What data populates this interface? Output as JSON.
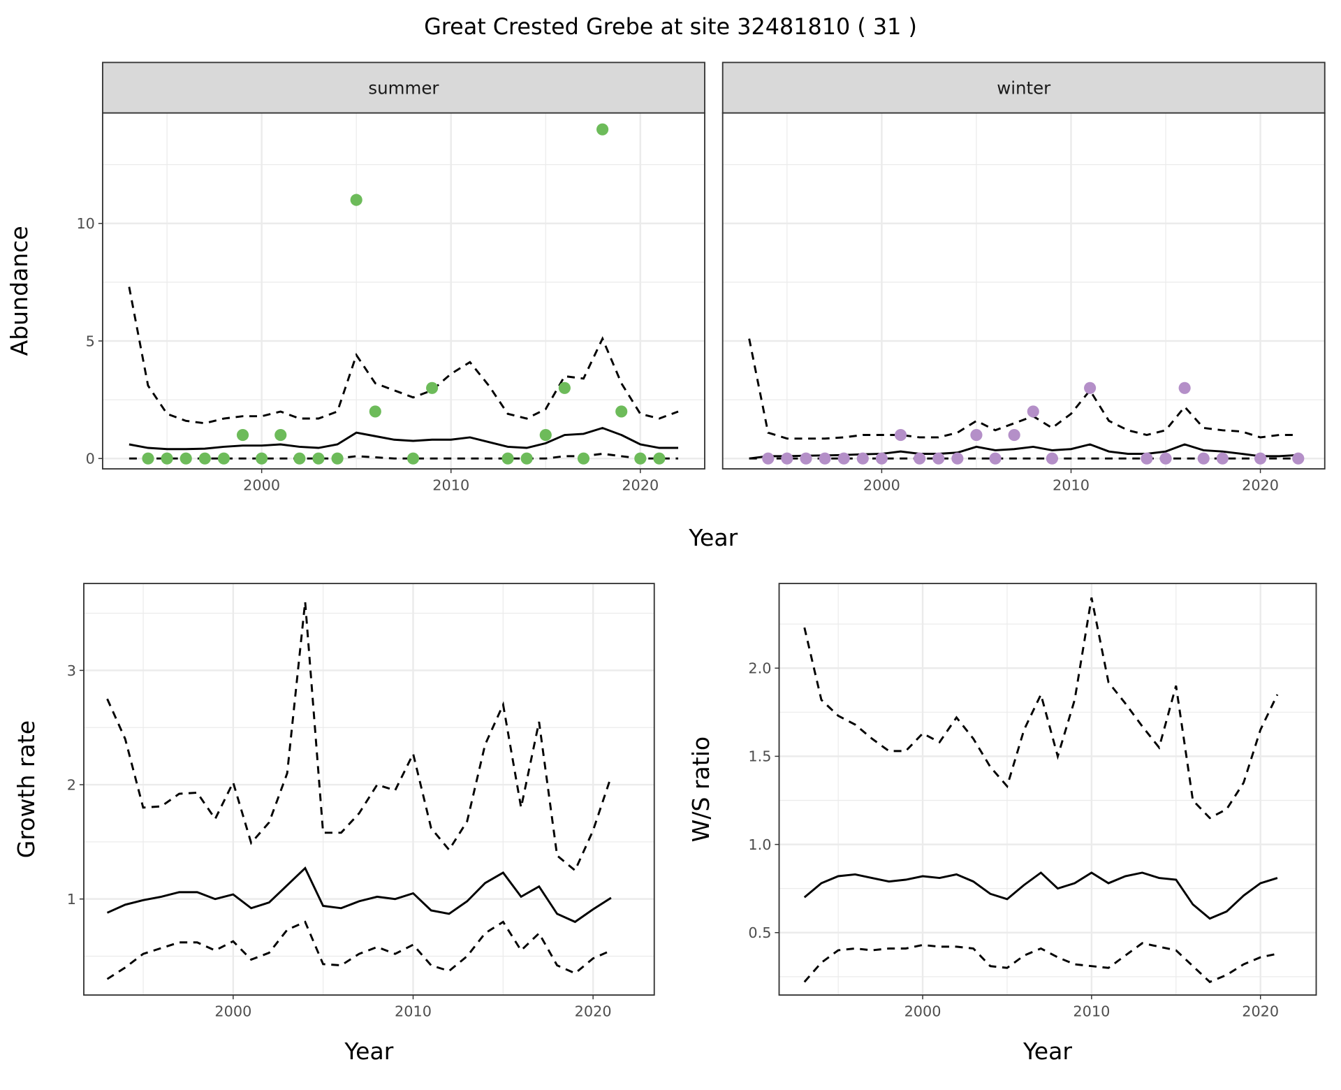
{
  "title": "Great Crested Grebe at site 32481810 ( 31 )",
  "colors": {
    "summer": "#6dbb5a",
    "winter": "#b48fc8",
    "line": "#000000",
    "strip": "#d9d9d9"
  },
  "chart_data": [
    {
      "type": "line+scatter",
      "facet": "summer",
      "xlabel": "Year",
      "ylabel": "Abundance",
      "xlim": [
        1991.6,
        2023.4
      ],
      "ylim": [
        -0.44,
        14.7
      ],
      "xticks": [
        2000,
        2010,
        2020
      ],
      "yticks": [
        0,
        5,
        10
      ],
      "grid": true,
      "points": {
        "x": [
          1994,
          1995,
          1996,
          1997,
          1998,
          1999,
          2000,
          2001,
          2002,
          2003,
          2004,
          2005,
          2006,
          2008,
          2009,
          2013,
          2014,
          2015,
          2016,
          2017,
          2018,
          2019,
          2020,
          2021
        ],
        "y": [
          0,
          0,
          0,
          0,
          0,
          1,
          0,
          1,
          0,
          0,
          0,
          11,
          2,
          0,
          3,
          0,
          0,
          1,
          3,
          0,
          14,
          2,
          0,
          0
        ]
      },
      "years": [
        1993,
        1994,
        1995,
        1996,
        1997,
        1998,
        1999,
        2000,
        2001,
        2002,
        2003,
        2004,
        2005,
        2006,
        2007,
        2008,
        2009,
        2010,
        2011,
        2012,
        2013,
        2014,
        2015,
        2016,
        2017,
        2018,
        2019,
        2020,
        2021,
        2022
      ],
      "mean": [
        0.6,
        0.45,
        0.4,
        0.4,
        0.42,
        0.5,
        0.55,
        0.55,
        0.6,
        0.5,
        0.45,
        0.6,
        1.1,
        0.95,
        0.8,
        0.75,
        0.8,
        0.8,
        0.9,
        0.7,
        0.5,
        0.45,
        0.65,
        1.0,
        1.05,
        1.3,
        1.0,
        0.6,
        0.45,
        0.45
      ],
      "upper": [
        7.3,
        3.1,
        1.9,
        1.6,
        1.5,
        1.7,
        1.8,
        1.8,
        2.0,
        1.7,
        1.7,
        2.0,
        4.4,
        3.2,
        2.9,
        2.6,
        2.9,
        3.6,
        4.1,
        3.1,
        1.9,
        1.7,
        2.1,
        3.5,
        3.4,
        5.1,
        3.2,
        1.9,
        1.7,
        2.0
      ],
      "lower": [
        0,
        0,
        0,
        0,
        0,
        0,
        0,
        0,
        0,
        0,
        0,
        0,
        0.1,
        0.05,
        0,
        0,
        0,
        0,
        0,
        0,
        0,
        0,
        0,
        0.1,
        0.1,
        0.2,
        0.1,
        0,
        0,
        0
      ]
    },
    {
      "type": "line+scatter",
      "facet": "winter",
      "xlabel": "Year",
      "ylabel": "Abundance",
      "xlim": [
        1991.6,
        2023.4
      ],
      "ylim": [
        -0.44,
        14.7
      ],
      "xticks": [
        2000,
        2010,
        2020
      ],
      "yticks": [
        0,
        5,
        10
      ],
      "grid": true,
      "points": {
        "x": [
          1994,
          1995,
          1996,
          1997,
          1998,
          1999,
          2000,
          2001,
          2002,
          2003,
          2004,
          2005,
          2006,
          2007,
          2008,
          2009,
          2011,
          2014,
          2015,
          2016,
          2017,
          2018,
          2020,
          2022
        ],
        "y": [
          0,
          0,
          0,
          0,
          0,
          0,
          0,
          1,
          0,
          0,
          0,
          1,
          0,
          1,
          2,
          0,
          3,
          0,
          0,
          3,
          0,
          0,
          0,
          0
        ]
      },
      "years": [
        1993,
        1994,
        1995,
        1996,
        1997,
        1998,
        1999,
        2000,
        2001,
        2002,
        2003,
        2004,
        2005,
        2006,
        2007,
        2008,
        2009,
        2010,
        2011,
        2012,
        2013,
        2014,
        2015,
        2016,
        2017,
        2018,
        2019,
        2020,
        2021,
        2022
      ],
      "mean": [
        0,
        0.1,
        0.1,
        0.12,
        0.13,
        0.15,
        0.18,
        0.2,
        0.3,
        0.2,
        0.2,
        0.25,
        0.5,
        0.35,
        0.4,
        0.5,
        0.35,
        0.4,
        0.6,
        0.3,
        0.2,
        0.2,
        0.3,
        0.6,
        0.35,
        0.3,
        0.2,
        0.1,
        0.1,
        0.15
      ],
      "upper": [
        5.1,
        1.1,
        0.85,
        0.85,
        0.85,
        0.9,
        1.0,
        1.0,
        1.0,
        0.9,
        0.9,
        1.1,
        1.6,
        1.2,
        1.5,
        1.8,
        1.3,
        1.9,
        2.9,
        1.6,
        1.2,
        1.0,
        1.2,
        2.2,
        1.3,
        1.2,
        1.15,
        0.9,
        1.0,
        1.0
      ],
      "lower": [
        0,
        0,
        0,
        0,
        0,
        0,
        0,
        0,
        0,
        0,
        0,
        0,
        0,
        0,
        0,
        0,
        0,
        0,
        0,
        0,
        0,
        0,
        0,
        0,
        0,
        0,
        0,
        0,
        0,
        0
      ]
    },
    {
      "type": "line",
      "xlabel": "Year",
      "ylabel": "Growth rate",
      "xlim": [
        1991.7,
        2023.4
      ],
      "ylim": [
        0.16,
        3.76
      ],
      "xticks": [
        2000,
        2010,
        2020
      ],
      "yticks": [
        1,
        2,
        3
      ],
      "grid": true,
      "years": [
        1993,
        1994,
        1995,
        1996,
        1997,
        1998,
        1999,
        2000,
        2001,
        2002,
        2003,
        2004,
        2005,
        2006,
        2007,
        2008,
        2009,
        2010,
        2011,
        2012,
        2013,
        2014,
        2015,
        2016,
        2017,
        2018,
        2019,
        2020,
        2021
      ],
      "mean": [
        0.88,
        0.95,
        0.99,
        1.02,
        1.06,
        1.06,
        1.0,
        1.04,
        0.92,
        0.97,
        1.12,
        1.27,
        0.94,
        0.92,
        0.98,
        1.02,
        1.0,
        1.05,
        0.9,
        0.87,
        0.98,
        1.14,
        1.23,
        1.02,
        1.11,
        0.87,
        0.8,
        0.91,
        1.01
      ],
      "upper": [
        2.75,
        2.4,
        1.8,
        1.81,
        1.92,
        1.93,
        1.7,
        2.02,
        1.49,
        1.67,
        2.1,
        3.6,
        1.58,
        1.58,
        1.75,
        2.0,
        1.95,
        2.27,
        1.62,
        1.43,
        1.68,
        2.35,
        2.7,
        1.8,
        2.55,
        1.38,
        1.25,
        1.6,
        2.07
      ],
      "lower": [
        0.3,
        0.4,
        0.52,
        0.57,
        0.62,
        0.62,
        0.55,
        0.63,
        0.47,
        0.53,
        0.73,
        0.8,
        0.43,
        0.42,
        0.52,
        0.58,
        0.52,
        0.6,
        0.42,
        0.37,
        0.5,
        0.7,
        0.8,
        0.55,
        0.7,
        0.42,
        0.35,
        0.48,
        0.55
      ]
    },
    {
      "type": "line",
      "xlabel": "Year",
      "ylabel": "W/S ratio",
      "xlim": [
        1991.5,
        2023.3
      ],
      "ylim": [
        0.146,
        2.48
      ],
      "xticks": [
        2000,
        2010,
        2020
      ],
      "yticks": [
        0.5,
        1.0,
        1.5,
        2.0
      ],
      "ytick_labels": [
        "0.5",
        "1.0",
        "1.5",
        "2.0"
      ],
      "grid": true,
      "years": [
        1993,
        1994,
        1995,
        1996,
        1997,
        1998,
        1999,
        2000,
        2001,
        2002,
        2003,
        2004,
        2005,
        2006,
        2007,
        2008,
        2009,
        2010,
        2011,
        2012,
        2013,
        2014,
        2015,
        2016,
        2017,
        2018,
        2019,
        2020,
        2021
      ],
      "mean": [
        0.7,
        0.78,
        0.82,
        0.83,
        0.81,
        0.79,
        0.8,
        0.82,
        0.81,
        0.83,
        0.79,
        0.72,
        0.69,
        0.77,
        0.84,
        0.75,
        0.78,
        0.84,
        0.78,
        0.82,
        0.84,
        0.81,
        0.8,
        0.66,
        0.58,
        0.62,
        0.71,
        0.78,
        0.81
      ],
      "upper": [
        2.23,
        1.82,
        1.73,
        1.68,
        1.6,
        1.53,
        1.53,
        1.63,
        1.58,
        1.72,
        1.6,
        1.44,
        1.33,
        1.65,
        1.85,
        1.5,
        1.82,
        2.4,
        1.92,
        1.8,
        1.67,
        1.55,
        1.9,
        1.25,
        1.15,
        1.2,
        1.35,
        1.65,
        1.85
      ],
      "lower": [
        0.22,
        0.33,
        0.4,
        0.41,
        0.4,
        0.41,
        0.41,
        0.43,
        0.42,
        0.42,
        0.41,
        0.31,
        0.3,
        0.37,
        0.41,
        0.36,
        0.32,
        0.31,
        0.3,
        0.37,
        0.44,
        0.42,
        0.4,
        0.31,
        0.22,
        0.26,
        0.32,
        0.36,
        0.38
      ]
    }
  ]
}
